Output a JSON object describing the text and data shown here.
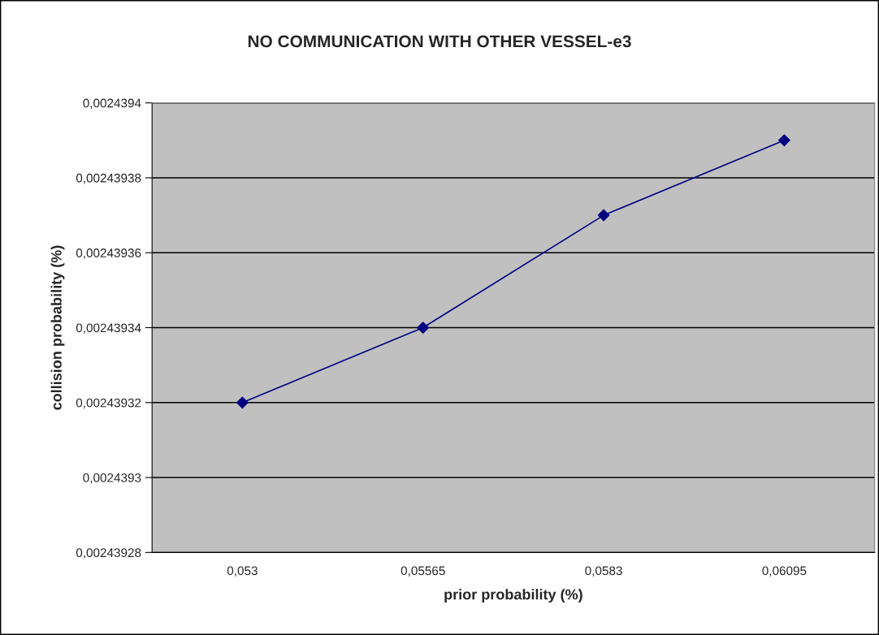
{
  "chart_data": {
    "type": "line",
    "title": "NO COMMUNICATION WITH OTHER VESSEL-e3",
    "xlabel": "prior probability (%)",
    "ylabel": "collision probability (%)",
    "categories": [
      "0,053",
      "0,05565",
      "0,0583",
      "0,06095"
    ],
    "series": [
      {
        "color": "#000080",
        "values": [
          0.00243932,
          0.00243934,
          0.00243937,
          0.00243939
        ]
      }
    ],
    "ylim": [
      0.00243928,
      0.0024394
    ],
    "yticks": [
      {
        "value": 0.00243928,
        "label": "0,00243928"
      },
      {
        "value": 0.0024393,
        "label": "0,0024393"
      },
      {
        "value": 0.00243932,
        "label": "0,00243932"
      },
      {
        "value": 0.00243934,
        "label": "0,00243934"
      },
      {
        "value": 0.00243936,
        "label": "0,00243936"
      },
      {
        "value": 0.00243938,
        "label": "0,00243938"
      },
      {
        "value": 0.0024394,
        "label": "0,0024394"
      }
    ],
    "grid": "y",
    "marker": "diamond",
    "line_style": "solid"
  }
}
